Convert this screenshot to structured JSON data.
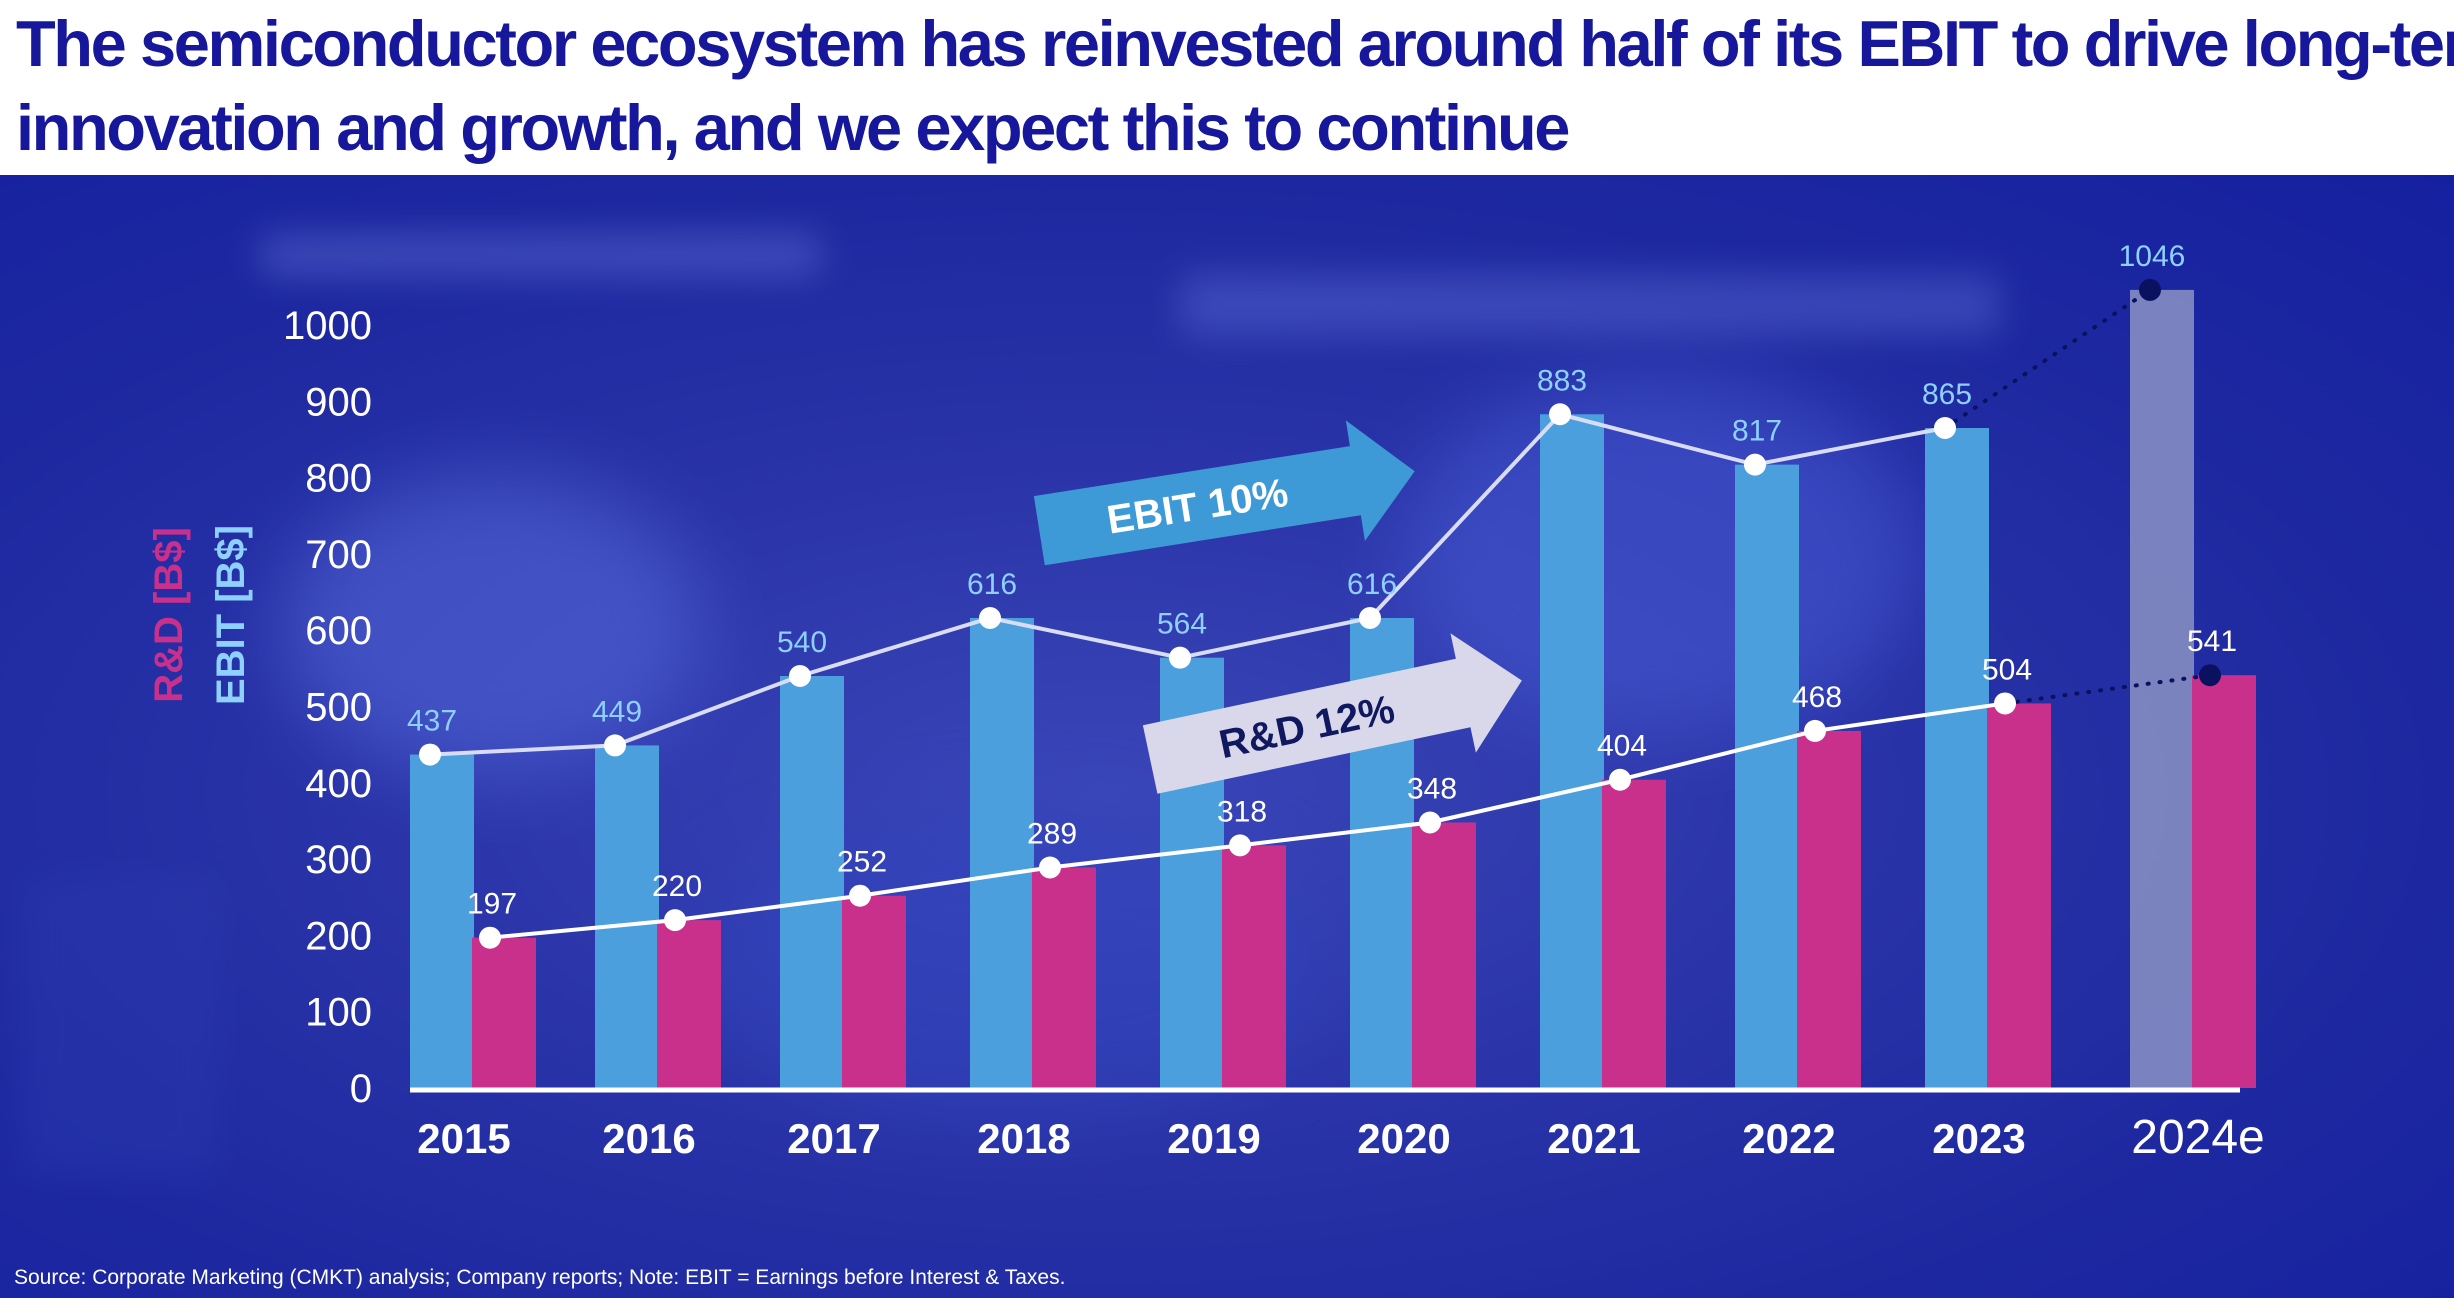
{
  "title_line1": "The semiconductor ecosystem has reinvested around half of its EBIT to drive long-term",
  "title_line2": "innovation and growth, and we expect this to continue",
  "source": "Source: Corporate Marketing (CMKT) analysis; Company reports; Note: EBIT = Earnings before Interest & Taxes.",
  "colors": {
    "title": "#16179a",
    "ebit": "#4a9fdc",
    "rnd": "#c8308c",
    "ebit_estimate": "#8b93c4",
    "ebit_label": "#8ed0ff",
    "axis_text": "#ffffff",
    "estimate_dot": "#0a1260"
  },
  "chart_data": {
    "type": "bar",
    "categories": [
      "2015",
      "2016",
      "2017",
      "2018",
      "2019",
      "2020",
      "2021",
      "2022",
      "2023",
      "2024e"
    ],
    "estimate_category": "2024e",
    "series": [
      {
        "name": "EBIT [B$]",
        "values": [
          437,
          449,
          540,
          616,
          564,
          616,
          883,
          817,
          865,
          1046
        ]
      },
      {
        "name": "R&D [B$]",
        "values": [
          197,
          220,
          252,
          289,
          318,
          348,
          404,
          468,
          504,
          541
        ]
      }
    ],
    "ylim": [
      0,
      1000
    ],
    "yticks": [
      "0",
      "100",
      "200",
      "300",
      "400",
      "500",
      "600",
      "700",
      "800",
      "900",
      "1000"
    ],
    "ylabel_rnd": "R&D [B$]",
    "ylabel_ebit": "EBIT [B$]",
    "annotations": [
      {
        "text": "EBIT 10%",
        "series": "EBIT [B$]"
      },
      {
        "text": "R&D 12%",
        "series": "R&D [B$]"
      }
    ],
    "grid": false
  }
}
